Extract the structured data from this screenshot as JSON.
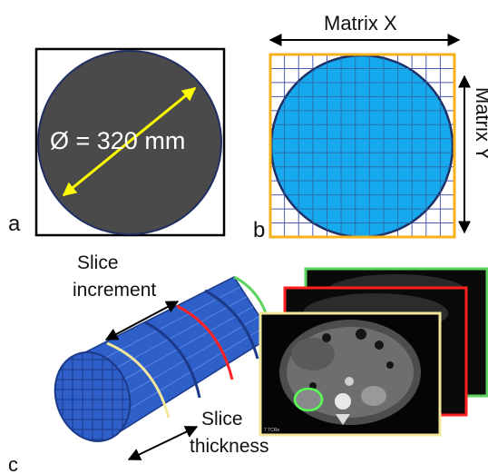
{
  "panels": {
    "a": {
      "letter": "a",
      "diameter_label": "Ø = 320 mm",
      "fill_color": "#4a4a4a",
      "arrow_color": "#ffff00"
    },
    "b": {
      "letter": "b",
      "matrix_x_label": "Matrix X",
      "matrix_y_label": "Matrix Y",
      "fill_color": "#17a9ee",
      "frame_color": "#f5b21c",
      "grid_color": "#4b5bb5"
    },
    "c": {
      "letter": "c",
      "slice_increment_label": [
        "Slice",
        "increment"
      ],
      "slice_thickness_label": [
        "Slice",
        "thickness"
      ],
      "cylinder_color": "#2f5fc8",
      "ring_colors": [
        "#ffe27a",
        "#1c3a8a",
        "#ff2222",
        "#1c3a8a",
        "#1c3a8a"
      ],
      "ct_frame_colors": [
        "#5fd35f",
        "#ff2020",
        "#f3e79a"
      ],
      "ct_caption": "7 TCRe"
    }
  }
}
